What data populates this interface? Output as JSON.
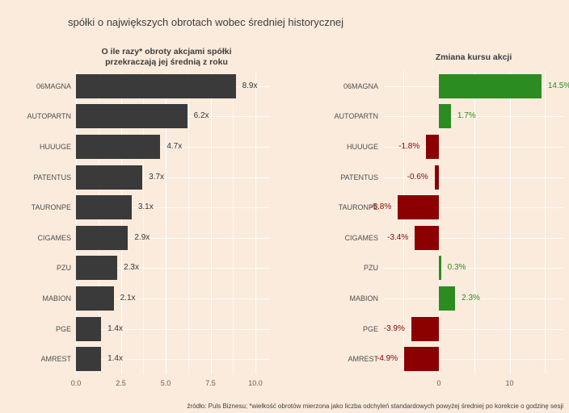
{
  "page": {
    "title": "spółki o największych obrotach wobec średniej historycznej",
    "footnote": "źródło: Puls Biznesu; *wielkość obrotów mierzona jako liczba odchyleń standardowych powyżej średniej po korekcie o godzinę sesji"
  },
  "colors": {
    "background": "#faebdc",
    "bar_dark": "#3a3a3a",
    "positive_green": "#2b8c21",
    "negative_red": "#8b0000",
    "gridline": "#ffffff",
    "value_text_dark": "#333333",
    "axis_text": "#606060",
    "category_text": "#4f4f4f"
  },
  "chart_data": [
    {
      "type": "bar",
      "orientation": "horizontal",
      "title_lines": [
        "O ile razy* obroty akcjami spółki",
        "przekraczają jej średnią z roku"
      ],
      "categories": [
        "06MAGNA",
        "AUTOPARTN",
        "HUUUGE",
        "PATENTUS",
        "TAURONPE",
        "CIGAMES",
        "PZU",
        "MABION",
        "PGE",
        "AMREST"
      ],
      "values": [
        8.9,
        6.2,
        4.7,
        3.7,
        3.1,
        2.9,
        2.3,
        2.1,
        1.4,
        1.4
      ],
      "value_labels": [
        "8.9x",
        "6.2x",
        "4.7x",
        "3.7x",
        "3.1x",
        "2.9x",
        "2.3x",
        "2.1x",
        "1.4x",
        "1.4x"
      ],
      "xlim": [
        0,
        10.8
      ],
      "xticks": [
        0,
        2.5,
        5,
        7.5,
        10
      ],
      "xtick_labels": [
        "0.0",
        "2.5",
        "5.0",
        "7.5",
        "10.0"
      ],
      "grid": "on",
      "legend": "none"
    },
    {
      "type": "bar",
      "orientation": "horizontal",
      "title": "Zmiana kursu akcji",
      "categories": [
        "06MAGNA",
        "AUTOPARTN",
        "HUUUGE",
        "PATENTUS",
        "TAURONPE",
        "CIGAMES",
        "PZU",
        "MABION",
        "PGE",
        "AMREST"
      ],
      "values": [
        14.5,
        1.7,
        -1.8,
        -0.6,
        -5.8,
        -3.4,
        0.3,
        2.3,
        -3.9,
        -4.9
      ],
      "value_labels": [
        "14.5%",
        "1.7%",
        "-1.8%",
        "-0.6%",
        "-5.8%",
        "-3.4%",
        "0.3%",
        "2.3%",
        "-3.9%",
        "-4.9%"
      ],
      "xlim": [
        -7.8,
        17.6
      ],
      "xticks": [
        0,
        10
      ],
      "xtick_labels": [
        "0",
        "10"
      ],
      "gridline_positions": [
        -5,
        0,
        5,
        10,
        15
      ],
      "grid": "on",
      "legend": "none"
    }
  ]
}
